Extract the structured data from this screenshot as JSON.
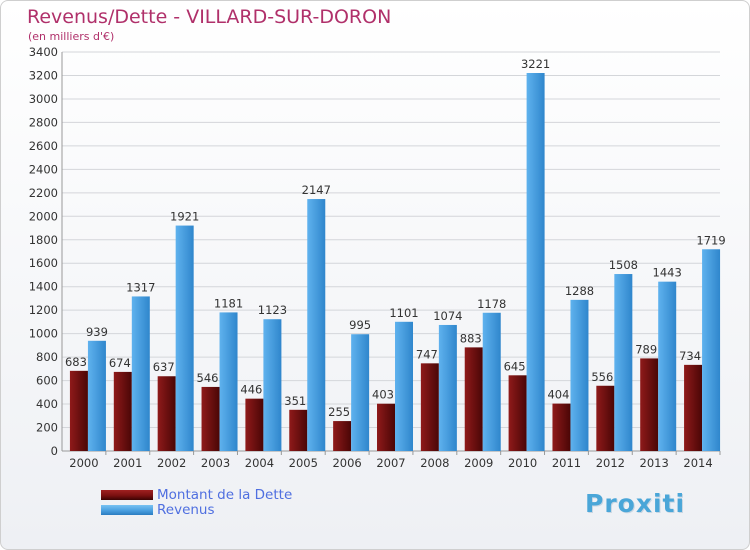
{
  "chart_data": {
    "type": "bar",
    "title": "Revenus/Dette - VILLARD-SUR-DORON",
    "subtitle": "(en milliers d'€)",
    "categories": [
      "2000",
      "2001",
      "2002",
      "2003",
      "2004",
      "2005",
      "2006",
      "2007",
      "2008",
      "2009",
      "2010",
      "2011",
      "2012",
      "2013",
      "2014"
    ],
    "series": [
      {
        "name": "Montant de la Dette",
        "color": "#7a1010",
        "values": [
          683,
          674,
          637,
          546,
          446,
          351,
          255,
          403,
          747,
          883,
          645,
          404,
          556,
          789,
          734
        ]
      },
      {
        "name": "Revenus",
        "color": "#4a9fe0",
        "values": [
          939,
          1317,
          1921,
          1181,
          1123,
          2147,
          995,
          1101,
          1074,
          1178,
          3221,
          1288,
          1508,
          1443,
          1719
        ]
      }
    ],
    "ylim": [
      0,
      3400
    ],
    "ytick_step": 200,
    "grid": true,
    "legend_position": "bottom-left"
  },
  "logo": {
    "text": "Proxiti"
  }
}
